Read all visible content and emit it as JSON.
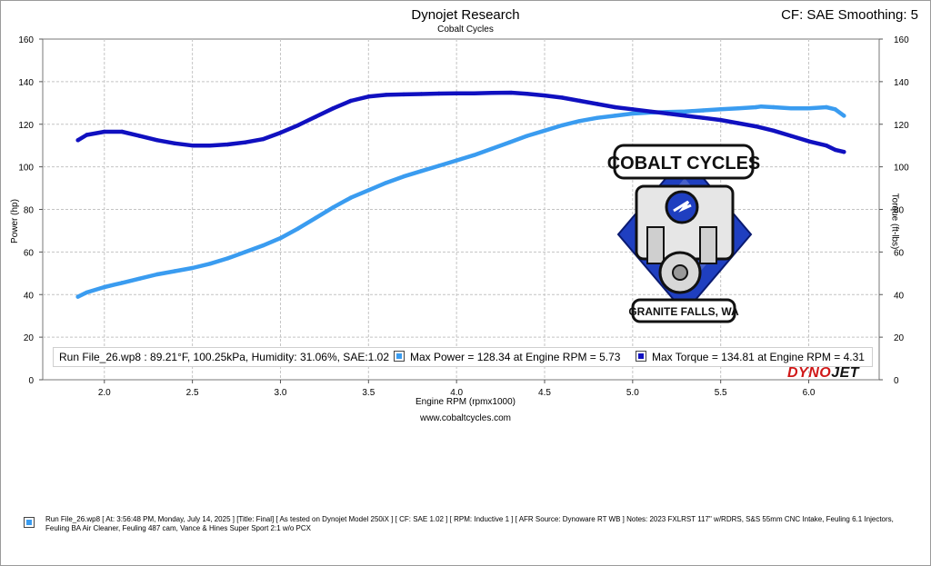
{
  "header": {
    "title": "Dynojet Research",
    "subtitle": "Cobalt Cycles",
    "correction": "CF: SAE Smoothing: 5"
  },
  "website": "www.cobaltcycles.com",
  "colors": {
    "power": "#3a9cf0",
    "torque": "#1010c0",
    "grid": "#c4c4c4",
    "dynojet_red": "#d01818"
  },
  "legend": {
    "run_info": "Run File_26.wp8  : 89.21°F, 100.25kPa, Humidity: 31.06%, SAE:1.02",
    "power_text": "Max Power = 128.34 at Engine RPM = 5.73",
    "torque_text": "Max Torque = 134.81 at Engine RPM = 4.31"
  },
  "logos": {
    "dynojet": "DYNOJET",
    "cobalt_top": "COBALT CYCLES",
    "cobalt_bottom": "GRANITE FALLS, WA"
  },
  "notes": "Run File_26.wp8 [ At: 3:56:48 PM, Monday, July 14, 2025 ] [Title: Final]  [ As tested on Dynojet Model 250iX ] [ CF: SAE 1.02 ] [ RPM: Inductive 1 ] [ AFR Source: Dynoware RT WB ] Notes: 2023 FXLRST 117\" w/RDRS, S&S 55mm CNC Intake, Feuling 6.1 Injectors, Feuling BA Air Cleaner, Feuling 487 cam, Vance & Hines Super Sport 2:1 w/o PCX",
  "chart_data": {
    "type": "line",
    "title": "Dynojet Research",
    "subtitle": "Cobalt Cycles",
    "xlabel": "Engine RPM (rpmx1000)",
    "ylabel_left": "Power (hp)",
    "ylabel_right": "Torque (ft-lbs)",
    "xlim": [
      1.65,
      6.4
    ],
    "ylim": [
      0,
      160
    ],
    "x_ticks": [
      "2.0",
      "2.5",
      "3.0",
      "3.5",
      "4.0",
      "4.5",
      "5.0",
      "5.5",
      "6.0"
    ],
    "y_ticks": [
      "0",
      "20",
      "40",
      "60",
      "80",
      "100",
      "120",
      "140",
      "160"
    ],
    "grid": true,
    "series": [
      {
        "name": "Power",
        "axis": "left",
        "x": [
          1.85,
          1.9,
          2.0,
          2.1,
          2.2,
          2.3,
          2.4,
          2.5,
          2.6,
          2.7,
          2.8,
          2.9,
          3.0,
          3.1,
          3.2,
          3.3,
          3.4,
          3.5,
          3.6,
          3.7,
          3.8,
          3.9,
          4.0,
          4.1,
          4.2,
          4.3,
          4.4,
          4.5,
          4.6,
          4.7,
          4.8,
          4.9,
          5.0,
          5.1,
          5.2,
          5.3,
          5.4,
          5.5,
          5.6,
          5.7,
          5.73,
          5.8,
          5.9,
          6.0,
          6.1,
          6.15,
          6.2
        ],
        "values": [
          39.0,
          41.0,
          43.5,
          45.5,
          47.5,
          49.5,
          51.0,
          52.5,
          54.5,
          57.0,
          60.0,
          63.0,
          66.5,
          71.0,
          76.0,
          81.0,
          85.5,
          89.0,
          92.5,
          95.5,
          98.0,
          100.5,
          103.0,
          105.5,
          108.5,
          111.5,
          114.5,
          117.0,
          119.5,
          121.5,
          123.0,
          124.0,
          125.0,
          125.5,
          125.8,
          126.0,
          126.5,
          127.0,
          127.5,
          128.0,
          128.34,
          128.0,
          127.5,
          127.5,
          128.0,
          127.0,
          124.0
        ]
      },
      {
        "name": "Torque",
        "axis": "right",
        "x": [
          1.85,
          1.9,
          2.0,
          2.1,
          2.2,
          2.3,
          2.4,
          2.5,
          2.6,
          2.7,
          2.8,
          2.9,
          3.0,
          3.1,
          3.2,
          3.3,
          3.4,
          3.5,
          3.6,
          3.7,
          3.8,
          3.9,
          4.0,
          4.1,
          4.2,
          4.31,
          4.4,
          4.5,
          4.6,
          4.7,
          4.8,
          4.9,
          5.0,
          5.1,
          5.2,
          5.3,
          5.4,
          5.5,
          5.6,
          5.7,
          5.8,
          5.9,
          6.0,
          6.1,
          6.15,
          6.2
        ],
        "values": [
          112.5,
          115.0,
          116.5,
          116.5,
          114.5,
          112.5,
          111.0,
          110.0,
          110.0,
          110.5,
          111.5,
          113.0,
          116.0,
          119.5,
          123.5,
          127.5,
          131.0,
          133.0,
          133.8,
          134.0,
          134.2,
          134.4,
          134.5,
          134.5,
          134.7,
          134.81,
          134.3,
          133.5,
          132.5,
          131.0,
          129.5,
          128.0,
          127.0,
          126.0,
          125.0,
          124.0,
          123.0,
          122.0,
          120.5,
          119.0,
          117.0,
          114.5,
          112.0,
          110.0,
          108.0,
          107.0
        ]
      }
    ]
  }
}
